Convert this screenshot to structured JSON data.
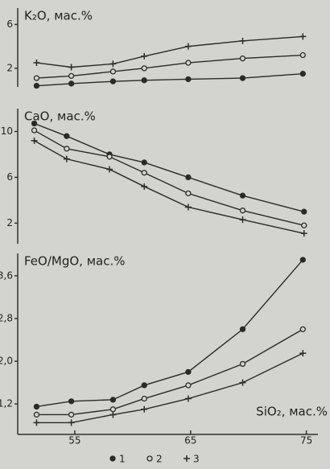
{
  "chart_data": [
    {
      "type": "line",
      "title": "K₂O, мас.%",
      "color": "#2a2a2a",
      "xlim": [
        50.07,
        76.0
      ],
      "ylim": [
        0.3,
        7.5
      ],
      "yticks": [
        2,
        6
      ],
      "x": [
        51.7,
        54.7,
        58.3,
        61.0,
        64.8,
        69.5,
        74.7
      ],
      "series": [
        {
          "marker": "dot",
          "values": [
            0.4,
            0.6,
            0.8,
            0.9,
            1.0,
            1.1,
            1.5
          ]
        },
        {
          "marker": "circle",
          "values": [
            1.1,
            1.3,
            1.7,
            2.0,
            2.5,
            2.9,
            3.2
          ]
        },
        {
          "marker": "plus",
          "values": [
            2.5,
            2.1,
            2.4,
            3.1,
            4.0,
            4.5,
            4.9
          ]
        }
      ]
    },
    {
      "type": "line",
      "title": "CaO, мас.%",
      "color": "#2a2a2a",
      "xlim": [
        50.07,
        76.0
      ],
      "ylim": [
        0.2,
        12
      ],
      "yticks": [
        2,
        6,
        10
      ],
      "x": [
        51.5,
        54.3,
        58.0,
        61.0,
        64.8,
        69.5,
        74.8
      ],
      "series": [
        {
          "marker": "dot",
          "values": [
            10.7,
            9.6,
            8.0,
            7.3,
            6.0,
            4.4,
            3.0
          ]
        },
        {
          "marker": "circle",
          "values": [
            10.1,
            8.5,
            7.8,
            6.4,
            4.6,
            3.1,
            1.8
          ]
        },
        {
          "marker": "plus",
          "values": [
            9.2,
            7.6,
            6.7,
            5.2,
            3.4,
            2.3,
            1.1
          ]
        }
      ]
    },
    {
      "type": "line",
      "title": "FeO/MgO, мас.%",
      "xlabel": "SiO₂, мас.%",
      "color": "#2a2a2a",
      "xlim": [
        50.07,
        76.0
      ],
      "ylim": [
        0.63,
        4.02
      ],
      "yticks": [
        {
          "value": 1.2,
          "label": "1,2"
        },
        {
          "value": 2.0,
          "label": "2,0"
        },
        {
          "value": 2.8,
          "label": "2,8"
        },
        {
          "value": 3.6,
          "label": "3,6"
        }
      ],
      "xticks": [
        55,
        65,
        75
      ],
      "x": [
        51.7,
        54.7,
        58.3,
        61.0,
        64.8,
        69.5,
        74.7
      ],
      "series": [
        {
          "name": "1",
          "marker": "dot",
          "values": [
            1.15,
            1.25,
            1.28,
            1.55,
            1.8,
            2.6,
            3.9
          ]
        },
        {
          "name": "2",
          "marker": "circle",
          "values": [
            1.0,
            1.0,
            1.1,
            1.3,
            1.55,
            1.95,
            2.6
          ]
        },
        {
          "name": "3",
          "marker": "plus",
          "values": [
            0.85,
            0.85,
            1.0,
            1.1,
            1.3,
            1.6,
            2.15
          ]
        }
      ]
    }
  ]
}
